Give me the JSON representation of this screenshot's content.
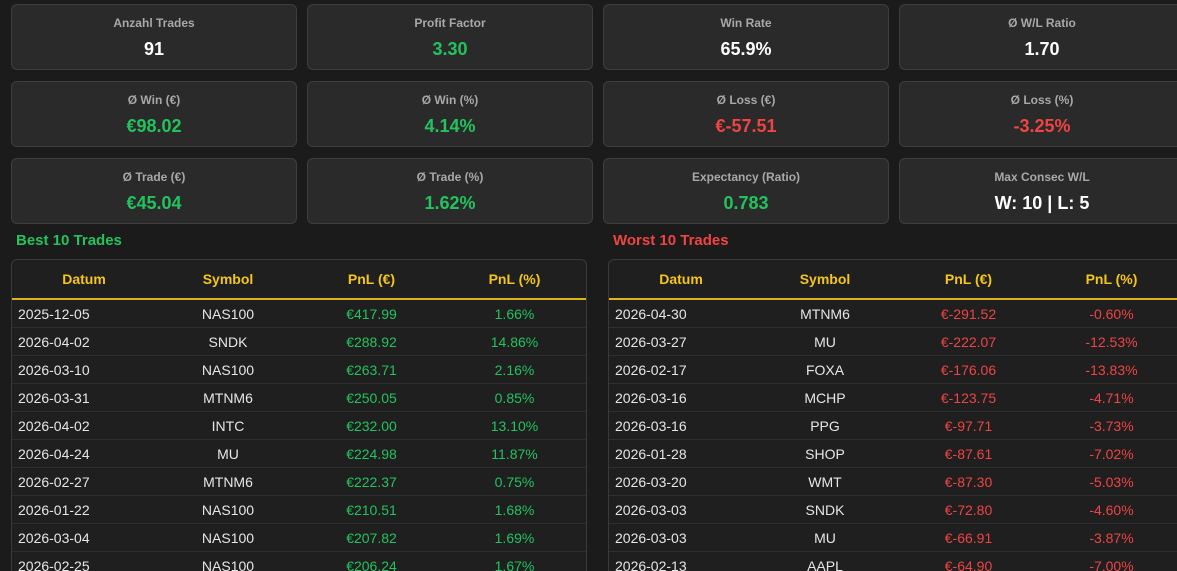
{
  "stats": [
    {
      "label": "Anzahl Trades",
      "value": "91",
      "tone": "neutral"
    },
    {
      "label": "Profit Factor",
      "value": "3.30",
      "tone": "pos"
    },
    {
      "label": "Win Rate",
      "value": "65.9%",
      "tone": "neutral"
    },
    {
      "label": "Ø W/L Ratio",
      "value": "1.70",
      "tone": "neutral"
    },
    {
      "label": "Ø Win (€)",
      "value": "€98.02",
      "tone": "pos"
    },
    {
      "label": "Ø Win (%)",
      "value": "4.14%",
      "tone": "pos"
    },
    {
      "label": "Ø Loss (€)",
      "value": "€-57.51",
      "tone": "neg"
    },
    {
      "label": "Ø Loss (%)",
      "value": "-3.25%",
      "tone": "neg"
    },
    {
      "label": "Ø Trade (€)",
      "value": "€45.04",
      "tone": "pos"
    },
    {
      "label": "Ø Trade (%)",
      "value": "1.62%",
      "tone": "pos"
    },
    {
      "label": "Expectancy (Ratio)",
      "value": "0.783",
      "tone": "pos"
    },
    {
      "label": "Max Consec W/L",
      "value": "W: 10 | L: 5",
      "tone": "neutral"
    }
  ],
  "best": {
    "title": "Best 10 Trades",
    "headers": [
      "Datum",
      "Symbol",
      "PnL (€)",
      "PnL (%)"
    ],
    "rows": [
      [
        "2025-12-05",
        "NAS100",
        "€417.99",
        "1.66%"
      ],
      [
        "2026-04-02",
        "SNDK",
        "€288.92",
        "14.86%"
      ],
      [
        "2026-03-10",
        "NAS100",
        "€263.71",
        "2.16%"
      ],
      [
        "2026-03-31",
        "MTNM6",
        "€250.05",
        "0.85%"
      ],
      [
        "2026-04-02",
        "INTC",
        "€232.00",
        "13.10%"
      ],
      [
        "2026-04-24",
        "MU",
        "€224.98",
        "11.87%"
      ],
      [
        "2026-02-27",
        "MTNM6",
        "€222.37",
        "0.75%"
      ],
      [
        "2026-01-22",
        "NAS100",
        "€210.51",
        "1.68%"
      ],
      [
        "2026-03-04",
        "NAS100",
        "€207.82",
        "1.69%"
      ],
      [
        "2026-02-25",
        "NAS100",
        "€206.24",
        "1.67%"
      ]
    ]
  },
  "worst": {
    "title": "Worst 10 Trades",
    "headers": [
      "Datum",
      "Symbol",
      "PnL (€)",
      "PnL (%)"
    ],
    "rows": [
      [
        "2026-04-30",
        "MTNM6",
        "€-291.52",
        "-0.60%"
      ],
      [
        "2026-03-27",
        "MU",
        "€-222.07",
        "-12.53%"
      ],
      [
        "2026-02-17",
        "FOXA",
        "€-176.06",
        "-13.83%"
      ],
      [
        "2026-03-16",
        "MCHP",
        "€-123.75",
        "-4.71%"
      ],
      [
        "2026-03-16",
        "PPG",
        "€-97.71",
        "-3.73%"
      ],
      [
        "2026-01-28",
        "SHOP",
        "€-87.61",
        "-7.02%"
      ],
      [
        "2026-03-20",
        "WMT",
        "€-87.30",
        "-5.03%"
      ],
      [
        "2026-03-03",
        "SNDK",
        "€-72.80",
        "-4.60%"
      ],
      [
        "2026-03-03",
        "MU",
        "€-66.91",
        "-3.87%"
      ],
      [
        "2026-02-13",
        "AAPL",
        "€-64.90",
        "-7.00%"
      ]
    ]
  },
  "colors": {
    "positive": "#22c35e",
    "negative": "#ef4444",
    "header_accent": "#f5c518",
    "background": "#1b1b1b",
    "card": "#2a2a2a"
  }
}
